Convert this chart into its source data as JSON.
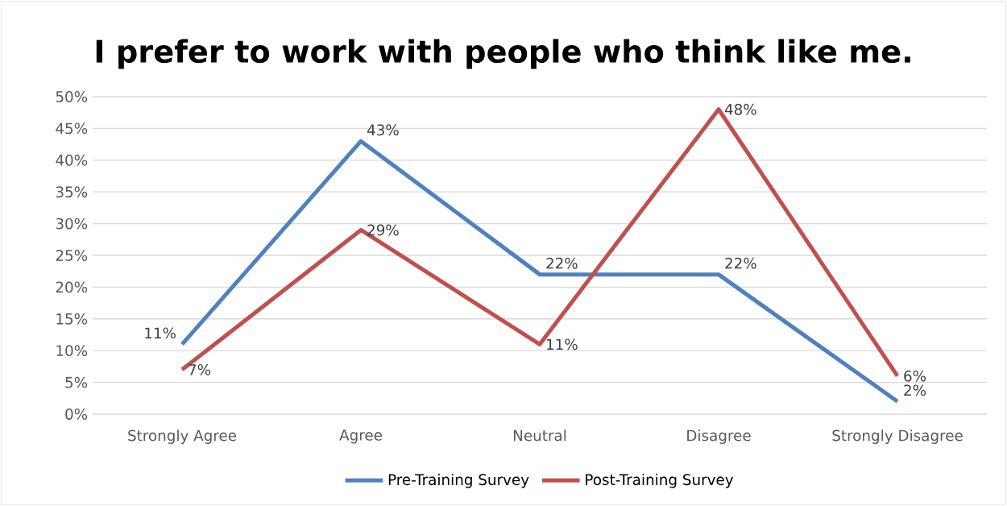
{
  "chart_data": {
    "type": "line",
    "title": "I prefer to work with people who think like me.",
    "categories": [
      "Strongly Agree",
      "Agree",
      "Neutral",
      "Disagree",
      "Strongly Disagree"
    ],
    "series": [
      {
        "name": "Pre-Training Survey",
        "color": "#4f81bd",
        "values": [
          11,
          43,
          22,
          22,
          2
        ],
        "value_labels": [
          "11%",
          "43%",
          "22%",
          "22%",
          "2%"
        ]
      },
      {
        "name": "Post-Training Survey",
        "color": "#c0504d",
        "values": [
          7,
          29,
          11,
          48,
          6
        ],
        "value_labels": [
          "7%",
          "29%",
          "11%",
          "48%",
          "6%"
        ]
      }
    ],
    "ylim": [
      0,
      50
    ],
    "yticks": [
      {
        "value": 0,
        "label": "0%"
      },
      {
        "value": 5,
        "label": "5%"
      },
      {
        "value": 10,
        "label": "10%"
      },
      {
        "value": 15,
        "label": "15%"
      },
      {
        "value": 20,
        "label": "20%"
      },
      {
        "value": 25,
        "label": "25%"
      },
      {
        "value": 30,
        "label": "30%"
      },
      {
        "value": 35,
        "label": "35%"
      },
      {
        "value": 40,
        "label": "40%"
      },
      {
        "value": 45,
        "label": "45%"
      },
      {
        "value": 50,
        "label": "50%"
      }
    ],
    "grid": "y",
    "legend": "bottom",
    "marker": "none",
    "line_style": "solid"
  }
}
